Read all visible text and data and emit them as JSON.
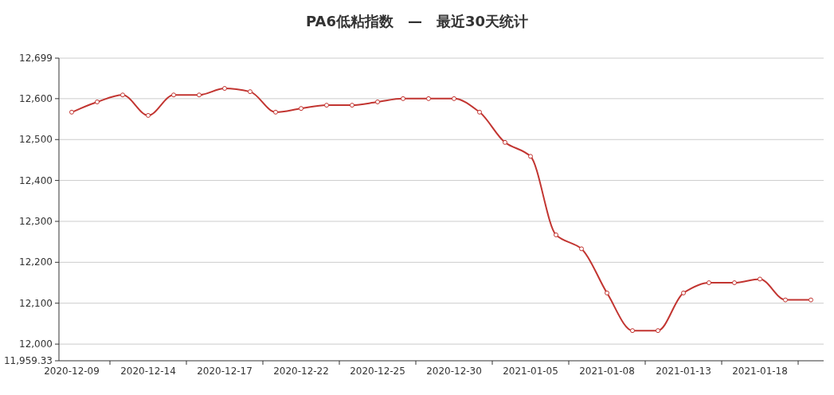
{
  "chart_data": {
    "type": "line",
    "title": "PA6低粘指数　—　最近30天统计",
    "categories": [
      "2020-12-09",
      null,
      null,
      "2020-12-14",
      null,
      null,
      "2020-12-17",
      null,
      null,
      "2020-12-22",
      null,
      null,
      "2020-12-25",
      null,
      null,
      "2020-12-30",
      null,
      null,
      "2021-01-05",
      null,
      null,
      "2021-01-08",
      null,
      null,
      "2021-01-13",
      null,
      null,
      "2021-01-18",
      null,
      null
    ],
    "series": [
      {
        "color": "#c23531",
        "values": [
          12567,
          12592,
          12609,
          12559,
          12609,
          12609,
          12625,
          12617,
          12567,
          12576,
          12584,
          12584,
          12592,
          12600,
          12600,
          12600,
          12567,
          12493,
          12459,
          12267,
          12233,
          12125,
          12033,
          12033,
          12125,
          12150,
          12150,
          12159,
          12108,
          12108
        ]
      }
    ],
    "ylim": [
      11959.33,
      12699
    ],
    "yticks": [
      {
        "value": 11959.33,
        "label": "11,959.33"
      },
      {
        "value": 12000,
        "label": "12,000"
      },
      {
        "value": 12100,
        "label": "12,100"
      },
      {
        "value": 12200,
        "label": "12,200"
      },
      {
        "value": 12300,
        "label": "12,300"
      },
      {
        "value": 12400,
        "label": "12,400"
      },
      {
        "value": 12500,
        "label": "12,500"
      },
      {
        "value": 12600,
        "label": "12,600"
      },
      {
        "value": 12699,
        "label": "12,699"
      }
    ],
    "grid": "y",
    "marker": "circle",
    "line_style": "solid"
  }
}
